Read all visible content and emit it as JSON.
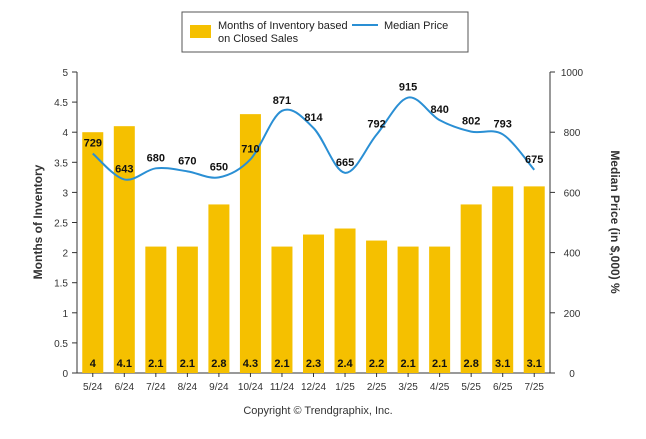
{
  "chart_data": {
    "type": "bar",
    "categories": [
      "5/24",
      "6/24",
      "7/24",
      "8/24",
      "9/24",
      "10/24",
      "11/24",
      "12/24",
      "1/25",
      "2/25",
      "3/25",
      "4/25",
      "5/25",
      "6/25",
      "7/25"
    ],
    "series": [
      {
        "name": "Months of Inventory based on Closed Sales",
        "legend_lines": [
          "Months of Inventory based",
          "on Closed Sales"
        ],
        "type": "bar",
        "axis": "left",
        "color": "#f5c000",
        "values": [
          4,
          4.1,
          2.1,
          2.1,
          2.8,
          4.3,
          2.1,
          2.3,
          2.4,
          2.2,
          2.1,
          2.1,
          2.8,
          3.1,
          3.1
        ],
        "labels": [
          "4",
          "4.1",
          "2.1",
          "2.1",
          "2.8",
          "4.3",
          "2.1",
          "2.3",
          "2.4",
          "2.2",
          "2.1",
          "2.1",
          "2.8",
          "3.1",
          "3.1"
        ]
      },
      {
        "name": "Median Price",
        "type": "line",
        "axis": "right",
        "color": "#2a8fd4",
        "values": [
          729,
          643,
          680,
          670,
          650,
          710,
          871,
          814,
          665,
          792,
          915,
          840,
          802,
          793,
          675
        ],
        "labels": [
          "729",
          "643",
          "680",
          "670",
          "650",
          "710",
          "871",
          "814",
          "665",
          "792",
          "915",
          "840",
          "802",
          "793",
          "675"
        ]
      }
    ],
    "ylabel_left": "Months of Inventory",
    "ylabel_right": "Median Price (in $,000) %",
    "ylim_left": [
      0,
      5
    ],
    "ylim_right": [
      0,
      1000
    ],
    "yticks_left": [
      "0",
      "0.5",
      "1",
      "1.5",
      "2",
      "2.5",
      "3",
      "3.5",
      "4",
      "4.5",
      "5"
    ],
    "yticks_right": [
      "0",
      "200",
      "400",
      "600",
      "800",
      "1000"
    ],
    "legend_position": "top-center",
    "grid": false
  },
  "footer": {
    "copyright": "Copyright © Trendgraphix, Inc."
  }
}
